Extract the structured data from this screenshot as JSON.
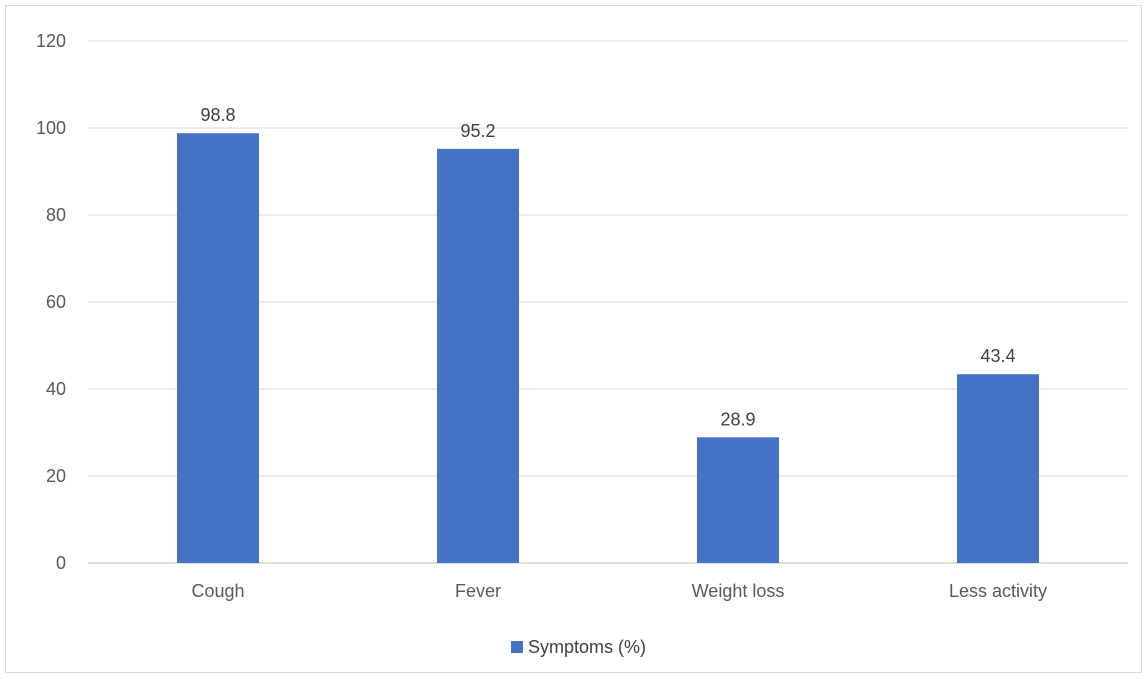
{
  "chart_data": {
    "type": "bar",
    "categories": [
      "Cough",
      "Fever",
      "Weight loss",
      "Less activity"
    ],
    "series": [
      {
        "name": "Symptoms (%)",
        "values": [
          98.8,
          95.2,
          28.9,
          43.4
        ],
        "color": "#4472c4"
      }
    ],
    "data_labels": [
      "98.8",
      "95.2",
      "28.9",
      "43.4"
    ],
    "yticks": [
      "0",
      "20",
      "40",
      "60",
      "80",
      "100",
      "120"
    ],
    "ylim": [
      0,
      120
    ],
    "grid": true,
    "legend": "bottom",
    "title": "",
    "xlabel": "",
    "ylabel": ""
  }
}
